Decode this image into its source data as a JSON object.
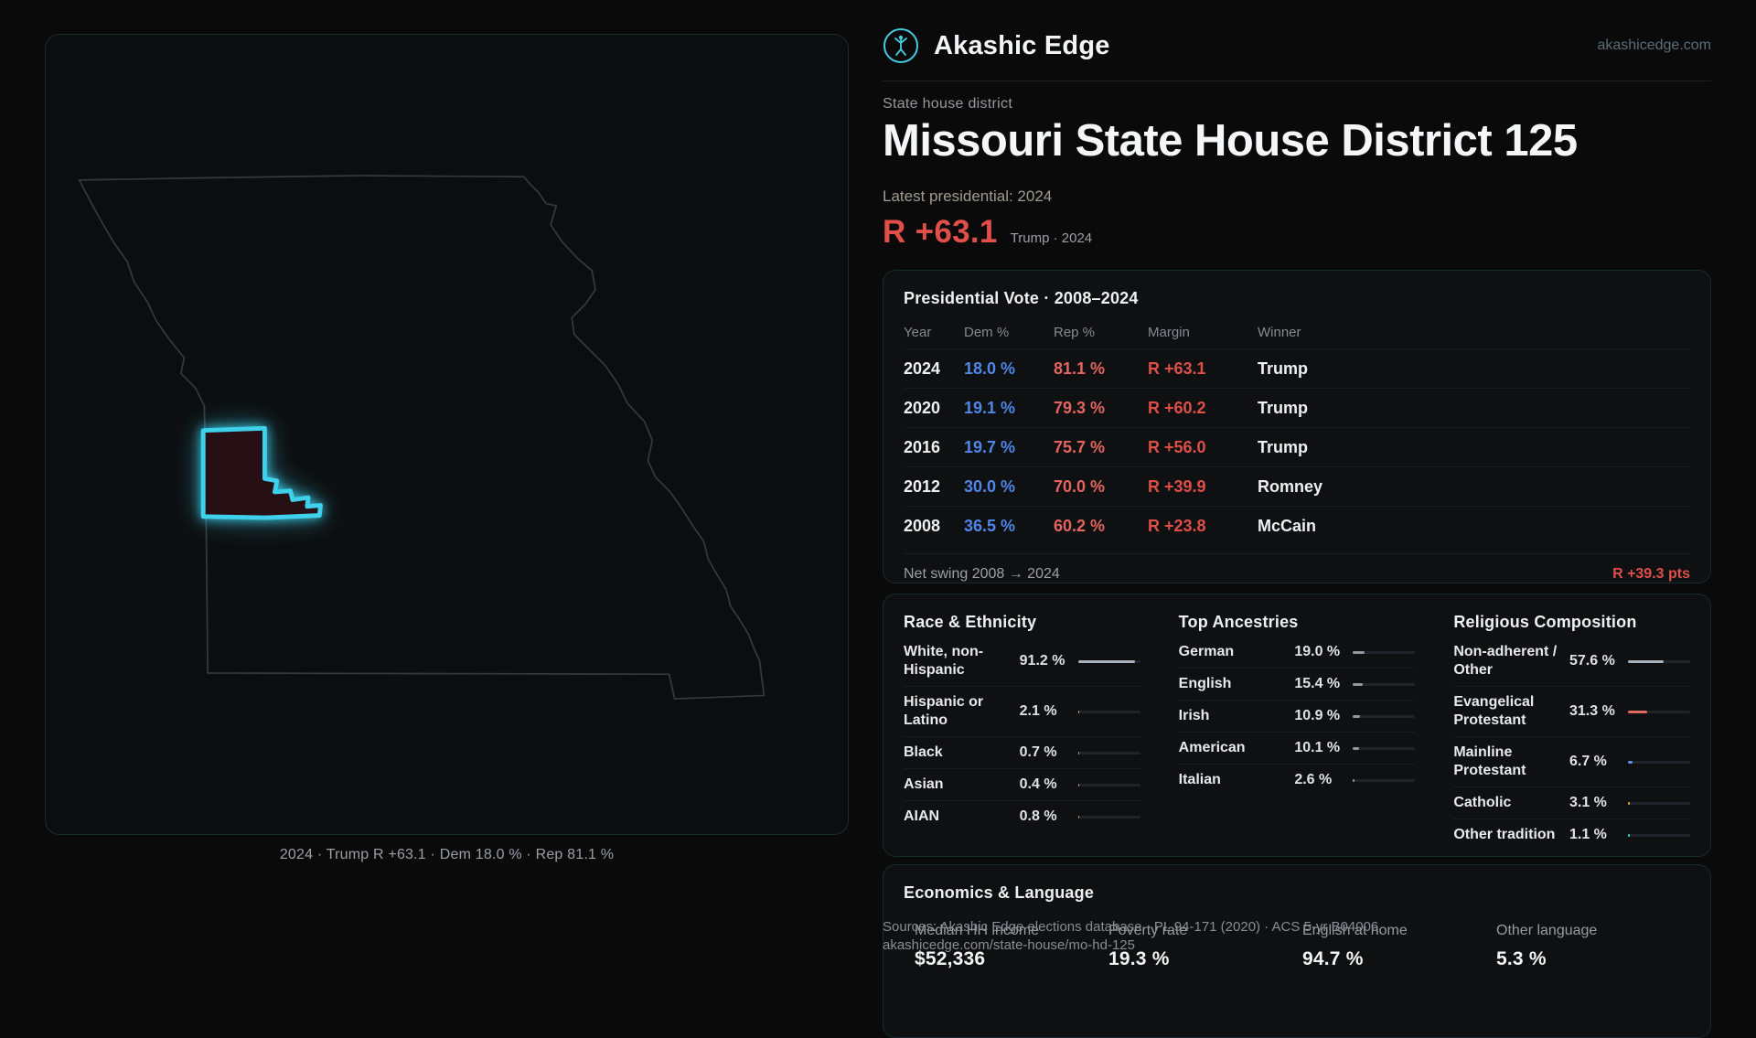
{
  "brand": {
    "name": "Akashic Edge",
    "site": "akashicedge.com"
  },
  "page": {
    "kicker": "State house district",
    "title": "Missouri State House District 125",
    "latest_label": "Latest presidential: 2024",
    "margin_headline": "R +63.1",
    "margin_note": "Trump · 2024"
  },
  "map": {
    "caption": "2024 · Trump R +63.1 · Dem 18.0 % · Rep 81.1 %",
    "district_stroke": "#3fd0ec",
    "state_outline": "#35393d"
  },
  "presidential": {
    "title": "Presidential Vote · 2008–2024",
    "columns": [
      "Year",
      "Dem %",
      "Rep %",
      "Margin",
      "Winner"
    ],
    "rows": [
      {
        "year": "2024",
        "dem": "18.0 %",
        "rep": "81.1 %",
        "margin": "R +63.1",
        "winner": "Trump"
      },
      {
        "year": "2020",
        "dem": "19.1 %",
        "rep": "79.3 %",
        "margin": "R +60.2",
        "winner": "Trump"
      },
      {
        "year": "2016",
        "dem": "19.7 %",
        "rep": "75.7 %",
        "margin": "R +56.0",
        "winner": "Trump"
      },
      {
        "year": "2012",
        "dem": "30.0 %",
        "rep": "70.0 %",
        "margin": "R +39.9",
        "winner": "Romney"
      },
      {
        "year": "2008",
        "dem": "36.5 %",
        "rep": "60.2 %",
        "margin": "R +23.8",
        "winner": "McCain"
      }
    ],
    "net_swing_label": "Net swing 2008 → 2024",
    "net_swing_value": "R +39.3 pts"
  },
  "demographics": {
    "race": {
      "title": "Race & Ethnicity",
      "rows": [
        {
          "label": "White, non-Hispanic",
          "value": "91.2 %",
          "pct": 91.2,
          "color": "#a9b1ba"
        },
        {
          "label": "Hispanic or Latino",
          "value": "2.1 %",
          "pct": 2.1,
          "color": "#dfa23e"
        },
        {
          "label": "Black",
          "value": "0.7 %",
          "pct": 0.7,
          "color": "#93a1ae"
        },
        {
          "label": "Asian",
          "value": "0.4 %",
          "pct": 0.4,
          "color": "#b08bd8"
        },
        {
          "label": "AIAN",
          "value": "0.8 %",
          "pct": 0.8,
          "color": "#d98b4a"
        }
      ]
    },
    "ancestries": {
      "title": "Top Ancestries",
      "rows": [
        {
          "label": "German",
          "value": "19.0 %",
          "pct": 19.0,
          "color": "#8f98a3"
        },
        {
          "label": "English",
          "value": "15.4 %",
          "pct": 15.4,
          "color": "#8f98a3"
        },
        {
          "label": "Irish",
          "value": "10.9 %",
          "pct": 10.9,
          "color": "#8f98a3"
        },
        {
          "label": "American",
          "value": "10.1 %",
          "pct": 10.1,
          "color": "#8f98a3"
        },
        {
          "label": "Italian",
          "value": "2.6 %",
          "pct": 2.6,
          "color": "#8f98a3"
        }
      ]
    },
    "religion": {
      "title": "Religious Composition",
      "rows": [
        {
          "label": "Non-adherent / Other",
          "value": "57.6 %",
          "pct": 57.6,
          "color": "#a9b1ba"
        },
        {
          "label": "Evangelical Protestant",
          "value": "31.3 %",
          "pct": 31.3,
          "color": "#e06c5f"
        },
        {
          "label": "Mainline Protestant",
          "value": "6.7 %",
          "pct": 6.7,
          "color": "#5a8fe0"
        },
        {
          "label": "Catholic",
          "value": "3.1 %",
          "pct": 3.1,
          "color": "#dfa23e"
        },
        {
          "label": "Other tradition",
          "value": "1.1 %",
          "pct": 1.1,
          "color": "#46cbe0"
        }
      ]
    }
  },
  "economics": {
    "title": "Economics & Language",
    "stats": [
      {
        "label": "Median HH income",
        "value": "$52,336"
      },
      {
        "label": "Poverty rate",
        "value": "19.3 %"
      },
      {
        "label": "English at home",
        "value": "94.7 %"
      },
      {
        "label": "Other language",
        "value": "5.3 %"
      }
    ]
  },
  "footer": {
    "sources": "Sources: Akashic Edge elections database · PL 94-171 (2020) · ACS 5-yr B04006",
    "permalink": "akashicedge.com/state-house/mo-hd-125"
  },
  "colors": {
    "dem_blue": "#4f86e8",
    "rep_red": "#e4655f",
    "margin_red": "#dd4f48",
    "accent_teal": "#46cbe0",
    "district_fill": "#261015"
  }
}
